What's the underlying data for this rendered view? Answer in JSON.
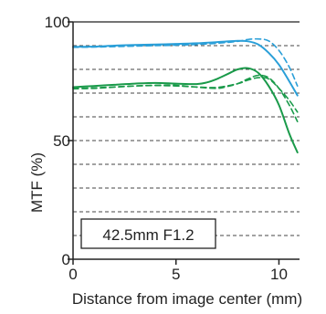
{
  "chart_data": {
    "type": "line",
    "xlabel": "Distance from image center (mm)",
    "ylabel": "MTF (%)",
    "xlim": [
      0,
      11
    ],
    "ylim": [
      0,
      100
    ],
    "x_ticks": [
      0,
      5,
      10
    ],
    "y_ticks": [
      0,
      50,
      100
    ],
    "gridlines_y": [
      10,
      20,
      30,
      40,
      50,
      60,
      70,
      80,
      90
    ],
    "grid": true,
    "annotation": "42.5mm F1.2",
    "colors": {
      "blue": "#2a9fd8",
      "green": "#1a9a4a",
      "grid": "#444444",
      "axis": "#222222"
    },
    "series": [
      {
        "color": "#2a9fd8",
        "style": "solid",
        "x": [
          0,
          1,
          2,
          3,
          4,
          5,
          6,
          7,
          8,
          8.5,
          9,
          9.5,
          10,
          10.5,
          10.9
        ],
        "y": [
          89.5,
          89.6,
          90,
          90.3,
          90.5,
          90.7,
          91,
          91.5,
          92,
          91.8,
          90.5,
          87,
          82,
          75,
          69
        ]
      },
      {
        "color": "#2a9fd8",
        "style": "dashed",
        "x": [
          0,
          1,
          2,
          3,
          4,
          5,
          6,
          7,
          8,
          8.5,
          9,
          9.5,
          10,
          10.5,
          10.9
        ],
        "y": [
          89.3,
          89.4,
          89.6,
          89.8,
          90,
          90.2,
          90.5,
          91,
          91.8,
          92.6,
          92.8,
          92,
          88,
          81,
          73
        ]
      },
      {
        "color": "#1a9a4a",
        "style": "solid",
        "x": [
          0,
          1,
          2,
          3,
          4,
          5,
          6,
          6.5,
          7,
          7.5,
          8,
          8.5,
          9,
          9.5,
          10,
          10.5,
          10.9
        ],
        "y": [
          72.5,
          73,
          73.5,
          74,
          74.3,
          74,
          73.8,
          74.5,
          76,
          78,
          80,
          80.5,
          78.5,
          73,
          65,
          53,
          45
        ]
      },
      {
        "color": "#1a9a4a",
        "style": "dashed",
        "x": [
          0,
          1,
          2,
          3,
          4,
          5,
          6,
          7,
          7.5,
          8,
          8.5,
          9,
          9.5,
          10,
          10.5,
          10.9
        ],
        "y": [
          71.8,
          72,
          72.5,
          73,
          73.3,
          73.3,
          72.5,
          72,
          72.8,
          74,
          76,
          77.5,
          76.5,
          72,
          65,
          58
        ]
      },
      {
        "color": "#1a9a4a",
        "style": "dashed",
        "x": [
          0,
          1,
          2,
          3,
          4,
          5,
          6,
          7,
          8,
          8.5,
          9,
          9.5,
          10,
          10.5,
          10.9
        ],
        "y": [
          72,
          72.2,
          72.6,
          73,
          73.2,
          73,
          72.6,
          72.4,
          74,
          75.5,
          76.5,
          76,
          72,
          67,
          62
        ]
      }
    ]
  }
}
